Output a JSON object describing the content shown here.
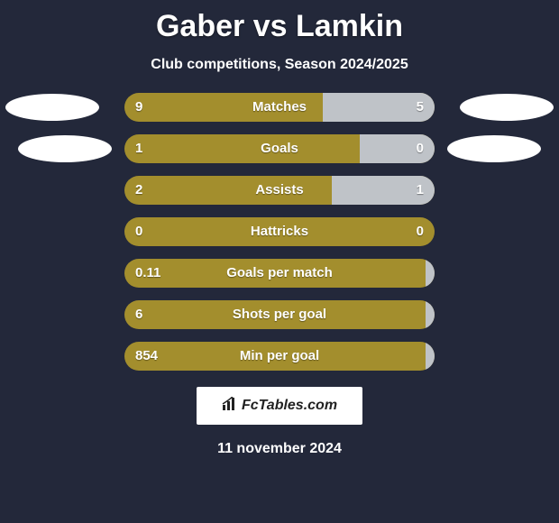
{
  "background_color": "#23283a",
  "header": {
    "title": "Gaber vs Lamkin",
    "subtitle": "Club competitions, Season 2024/2025",
    "title_color": "#ffffff",
    "title_fontsize": 34
  },
  "chart": {
    "type": "comparison-bars",
    "track_width": 344,
    "track_height": 32,
    "track_radius": 16,
    "left_color": "#a38e2d",
    "right_color": "#bfc3c8",
    "text_color": "#ffffff",
    "label_fontsize": 15,
    "rows": [
      {
        "label": "Matches",
        "left_val": "9",
        "right_val": "5",
        "left_pct": 64,
        "right_pct": 36
      },
      {
        "label": "Goals",
        "left_val": "1",
        "right_val": "0",
        "left_pct": 76,
        "right_pct": 24
      },
      {
        "label": "Assists",
        "left_val": "2",
        "right_val": "1",
        "left_pct": 67,
        "right_pct": 33
      },
      {
        "label": "Hattricks",
        "left_val": "0",
        "right_val": "0",
        "left_pct": 100,
        "right_pct": 0
      },
      {
        "label": "Goals per match",
        "left_val": "0.11",
        "right_val": "",
        "left_pct": 97,
        "right_pct": 3
      },
      {
        "label": "Shots per goal",
        "left_val": "6",
        "right_val": "",
        "left_pct": 97,
        "right_pct": 3
      },
      {
        "label": "Min per goal",
        "left_val": "854",
        "right_val": "",
        "left_pct": 97,
        "right_pct": 3
      }
    ]
  },
  "badges": {
    "shape": "ellipse",
    "fill": "#ffffff",
    "width": 104,
    "height": 30
  },
  "footer": {
    "brand": "FcTables.com",
    "brand_bg": "#ffffff",
    "brand_color": "#222222",
    "date": "11 november 2024"
  }
}
